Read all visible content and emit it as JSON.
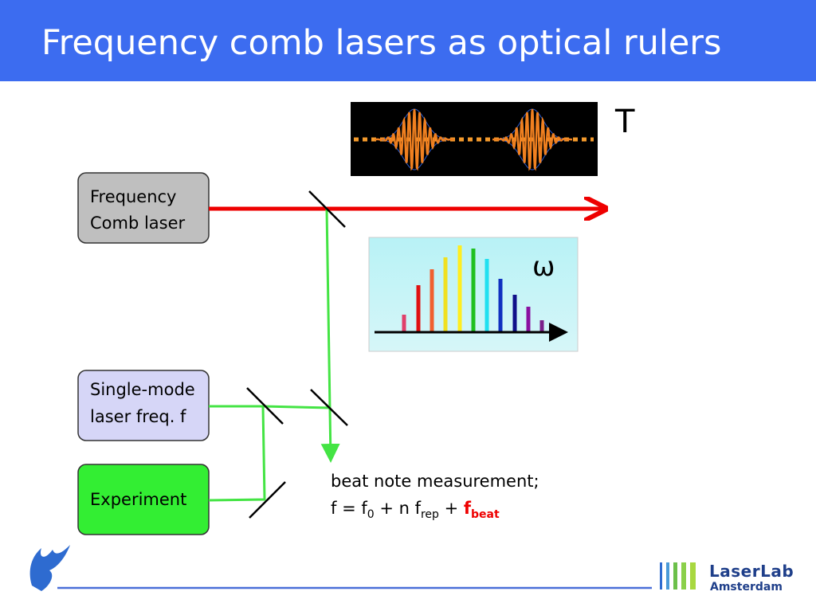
{
  "title": "Frequency comb lasers as optical rulers",
  "pulse_label": "T",
  "spectrum_label": "ω",
  "boxes": [
    {
      "lines": [
        "Frequency",
        "Comb laser"
      ]
    },
    {
      "lines": [
        "Single-mode",
        "laser freq. f"
      ]
    },
    {
      "lines": [
        "Experiment"
      ]
    }
  ],
  "measurement": {
    "text": "beat note measurement;",
    "formula": [
      "f =  f",
      "0",
      " + n f",
      "rep",
      " + ",
      "f",
      "beat"
    ]
  },
  "logo": {
    "name": "LaserLab",
    "city": "Amsterdam"
  }
}
